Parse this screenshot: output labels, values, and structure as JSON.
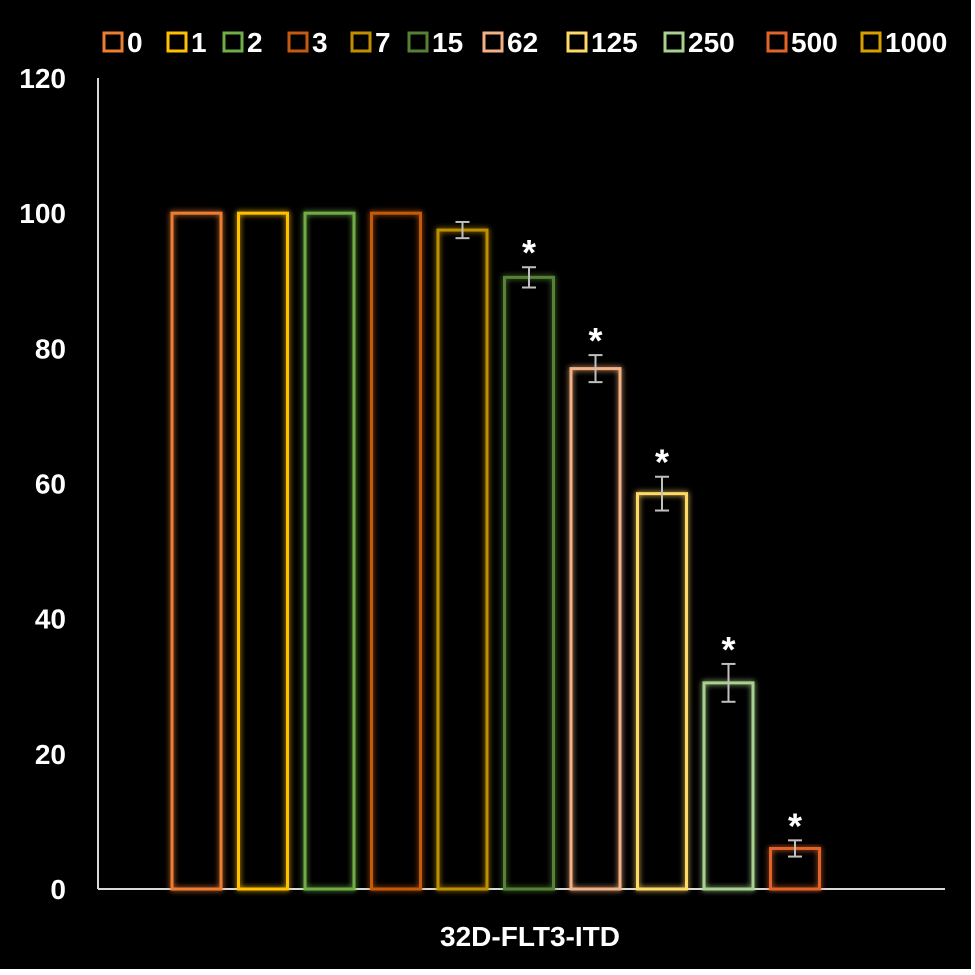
{
  "chart_data": {
    "type": "bar",
    "title": "",
    "xlabel": "32D-FLT3-ITD",
    "ylabel": "",
    "ylim": [
      0,
      120
    ],
    "yticks": [
      0,
      20,
      40,
      60,
      80,
      100,
      120
    ],
    "grid": false,
    "legend_position": "top",
    "categories": [
      "32D-FLT3-ITD"
    ],
    "series": [
      {
        "name": "0",
        "values": [
          100
        ],
        "error": 0,
        "significant": false,
        "color": "#ed7d31"
      },
      {
        "name": "1",
        "values": [
          100
        ],
        "error": 0,
        "significant": false,
        "color": "#ffc000"
      },
      {
        "name": "2",
        "values": [
          100
        ],
        "error": 0,
        "significant": false,
        "color": "#70ad47"
      },
      {
        "name": "3",
        "values": [
          100
        ],
        "error": 0,
        "significant": false,
        "color": "#c55a11"
      },
      {
        "name": "7",
        "values": [
          97.5
        ],
        "error": 1.2,
        "significant": false,
        "color": "#bf8f00"
      },
      {
        "name": "15",
        "values": [
          90.5
        ],
        "error": 1.5,
        "significant": true,
        "color": "#548235"
      },
      {
        "name": "62",
        "values": [
          77
        ],
        "error": 2,
        "significant": true,
        "color": "#f4b183"
      },
      {
        "name": "125",
        "values": [
          58.5
        ],
        "error": 2.5,
        "significant": true,
        "color": "#ffd966"
      },
      {
        "name": "250",
        "values": [
          30.5
        ],
        "error": 2.8,
        "significant": true,
        "color": "#a9d18e"
      },
      {
        "name": "500",
        "values": [
          6
        ],
        "error": 1.2,
        "significant": true,
        "color": "#e2642b"
      },
      {
        "name": "1000",
        "values": [
          0
        ],
        "error": 0,
        "significant": false,
        "color": "#d6a000"
      }
    ],
    "significance_marker": "*"
  }
}
